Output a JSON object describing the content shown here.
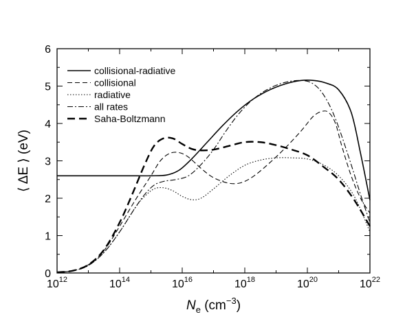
{
  "chart_data": {
    "type": "line",
    "title": "",
    "xlabel": {
      "symbol": "N",
      "subscript": "e",
      "units": "(cm",
      "units_exp": "−3",
      "units_close": ")"
    },
    "ylabel": "⟨ ΔE ⟩ (eV)",
    "x_scale": "log10",
    "xlim_exp": [
      12,
      22
    ],
    "ylim": [
      0,
      6
    ],
    "x_ticks": [
      {
        "base": "10",
        "exp": "12"
      },
      {
        "base": "10",
        "exp": "14"
      },
      {
        "base": "10",
        "exp": "16"
      },
      {
        "base": "10",
        "exp": "18"
      },
      {
        "base": "10",
        "exp": "20"
      },
      {
        "base": "10",
        "exp": "22"
      }
    ],
    "y_ticks": [
      "0",
      "1",
      "2",
      "3",
      "4",
      "5",
      "6"
    ],
    "legend_position": "top-left",
    "series": [
      {
        "name": "collisional-radiative",
        "style": "solid",
        "color": "#000000",
        "width": 1.6,
        "log10_x": [
          12,
          14.5,
          15.0,
          15.5,
          15.9,
          16.3,
          16.8,
          17.3,
          17.8,
          18.3,
          18.8,
          19.3,
          19.8,
          20.2,
          20.6,
          21.0,
          21.4,
          21.7,
          22.0
        ],
        "y": [
          2.6,
          2.6,
          2.6,
          2.62,
          2.75,
          3.05,
          3.5,
          3.95,
          4.35,
          4.67,
          4.9,
          5.06,
          5.15,
          5.15,
          5.08,
          4.9,
          4.3,
          3.2,
          1.95
        ]
      },
      {
        "name": "collisional",
        "style": "dashed-thin",
        "color": "#000000",
        "width": 1.1,
        "log10_x": [
          12,
          12.5,
          13.0,
          13.5,
          14.0,
          14.5,
          15.0,
          15.3,
          15.6,
          15.9,
          16.2,
          16.6,
          17.0,
          17.5,
          17.9,
          18.3,
          18.8,
          19.3,
          19.8,
          20.2,
          20.5,
          20.7,
          20.9,
          21.1,
          21.4,
          21.7,
          22.0
        ],
        "y": [
          0.02,
          0.06,
          0.22,
          0.6,
          1.25,
          1.95,
          2.6,
          3.0,
          3.2,
          3.22,
          3.1,
          2.8,
          2.55,
          2.4,
          2.42,
          2.6,
          2.95,
          3.35,
          3.8,
          4.2,
          4.33,
          4.28,
          4.0,
          3.4,
          2.6,
          2.0,
          1.6
        ]
      },
      {
        "name": "radiative",
        "style": "dotted",
        "color": "#000000",
        "width": 1.1,
        "log10_x": [
          12,
          12.5,
          13.0,
          13.5,
          14.0,
          14.5,
          14.8,
          15.1,
          15.4,
          15.7,
          16.0,
          16.3,
          16.6,
          17.0,
          17.5,
          18.0,
          18.5,
          19.0,
          19.5,
          20.0,
          20.5,
          21.0,
          21.5,
          22.0
        ],
        "y": [
          0.02,
          0.06,
          0.2,
          0.55,
          1.1,
          1.75,
          2.05,
          2.25,
          2.28,
          2.2,
          2.05,
          1.96,
          2.0,
          2.25,
          2.6,
          2.88,
          3.02,
          3.08,
          3.08,
          3.05,
          2.9,
          2.6,
          2.05,
          1.1
        ]
      },
      {
        "name": "all rates",
        "style": "dash-dot",
        "color": "#000000",
        "width": 1.1,
        "log10_x": [
          12,
          12.5,
          13.0,
          13.5,
          14.0,
          14.5,
          14.8,
          15.1,
          15.4,
          15.8,
          16.2,
          16.6,
          17.0,
          17.4,
          17.8,
          18.2,
          18.6,
          19.0,
          19.4,
          19.8,
          20.1,
          20.4,
          20.7,
          21.0,
          21.4,
          21.7,
          22.0
        ],
        "y": [
          0.02,
          0.06,
          0.2,
          0.55,
          1.1,
          1.75,
          2.1,
          2.35,
          2.45,
          2.5,
          2.6,
          2.9,
          3.3,
          3.8,
          4.25,
          4.6,
          4.85,
          5.02,
          5.12,
          5.15,
          5.1,
          4.9,
          4.5,
          3.9,
          2.9,
          2.1,
          1.35
        ]
      },
      {
        "name": "Saha-Boltzmann",
        "style": "dashed-thick",
        "color": "#000000",
        "width": 2.4,
        "log10_x": [
          12,
          12.5,
          13.0,
          13.5,
          14.0,
          14.4,
          14.8,
          15.1,
          15.4,
          15.7,
          16.0,
          16.3,
          16.6,
          17.0,
          17.5,
          18.0,
          18.5,
          19.0,
          19.5,
          20.0,
          20.5,
          21.0,
          21.5,
          22.0
        ],
        "y": [
          0.02,
          0.06,
          0.22,
          0.62,
          1.35,
          2.1,
          2.9,
          3.4,
          3.6,
          3.6,
          3.45,
          3.32,
          3.28,
          3.3,
          3.4,
          3.5,
          3.5,
          3.42,
          3.3,
          3.15,
          2.85,
          2.5,
          1.95,
          1.25
        ]
      }
    ]
  }
}
